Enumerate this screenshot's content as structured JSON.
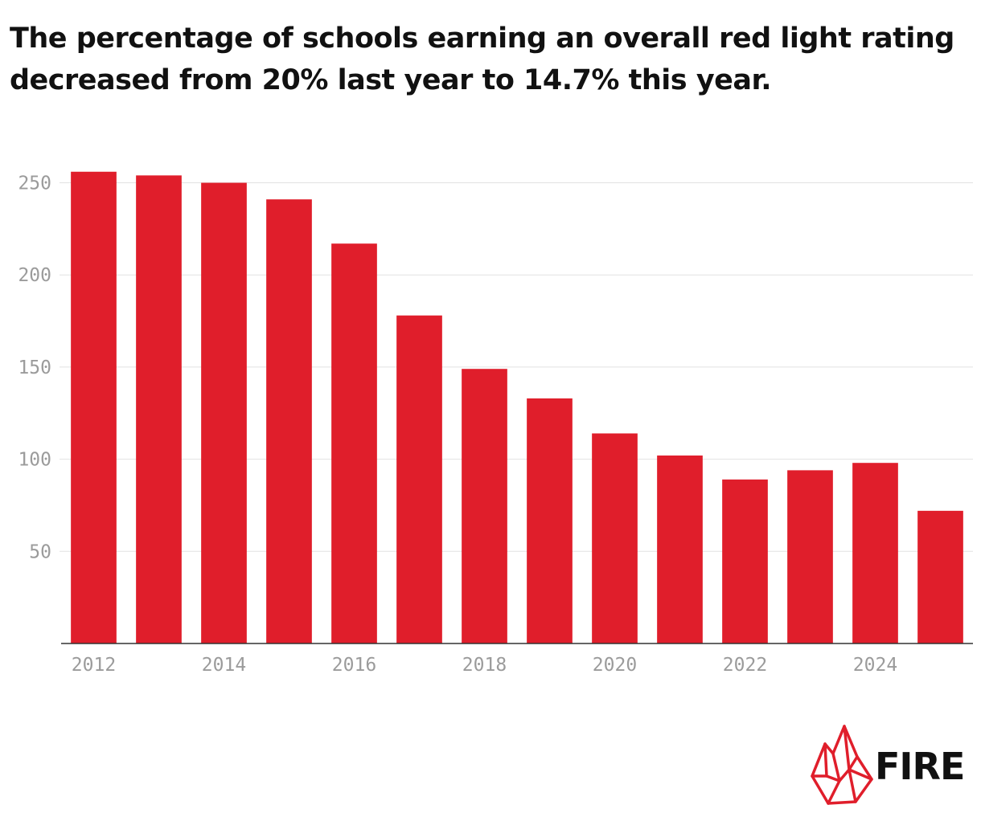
{
  "title": "The percentage of schools earning an overall red light rating decreased from 20% last year to 14.7% this year.",
  "logo": {
    "text": "FIRE",
    "icon": "flame-crystal-icon",
    "color": "#e01e2b"
  },
  "chart_data": {
    "type": "bar",
    "categories": [
      "2012",
      "2013",
      "2014",
      "2015",
      "2016",
      "2017",
      "2018",
      "2019",
      "2020",
      "2021",
      "2022",
      "2023",
      "2024",
      "2025"
    ],
    "values": [
      256,
      254,
      250,
      241,
      217,
      178,
      149,
      133,
      114,
      102,
      89,
      94,
      98,
      72
    ],
    "x_tick_labels": [
      "2012",
      "2014",
      "2016",
      "2018",
      "2020",
      "2022",
      "2024"
    ],
    "y_ticks": [
      50,
      100,
      150,
      200,
      250
    ],
    "ylim": [
      0,
      262
    ],
    "title": "",
    "xlabel": "",
    "ylabel": "",
    "grid": true,
    "bar_color": "#e01e2b"
  }
}
